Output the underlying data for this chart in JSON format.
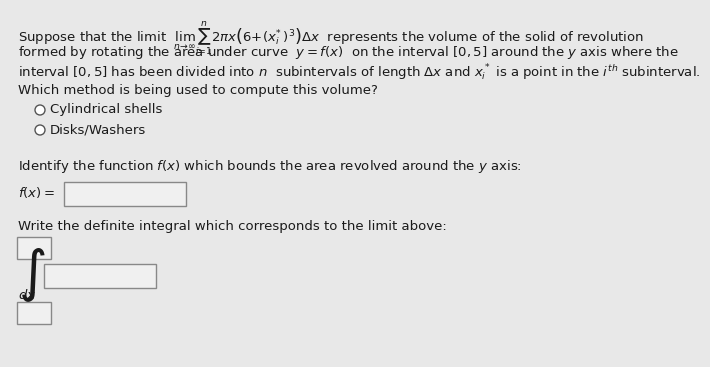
{
  "bg_color": "#e8e8e8",
  "text_color": "#1a1a1a",
  "line1a": "Suppose that the limit ",
  "line1_math": "$\\lim_{n\\to\\infty}\\sum_{i=1}^{n}2\\pi x\\left(6+(x_i^*)^3\\right)\\Delta x$",
  "line1b": " represents the volume of the solid of revolution",
  "line2": "formed by rotating the area under curve $y=f(x)$ on the interval $[0,5]$ around the $y$ axis where the",
  "line3": "interval $[0,5]$ has been divided into $n$  subintervals of length $\\Delta x$ and $x_i^*$ is a point in the $i^{th}$ subinterval.",
  "question1": "Which method is being used to compute this volume?",
  "radio1": "Cylindrical shells",
  "radio2": "Disks/Washers",
  "question2": "Identify the function $f(x)$ which bounds the area revolved around the $y$ axis:",
  "fx_label": "$f(x)=$",
  "question3": "Write the definite integral which corresponds to the limit above:",
  "dx_label": "$dx$",
  "font_size_main": 9.5
}
